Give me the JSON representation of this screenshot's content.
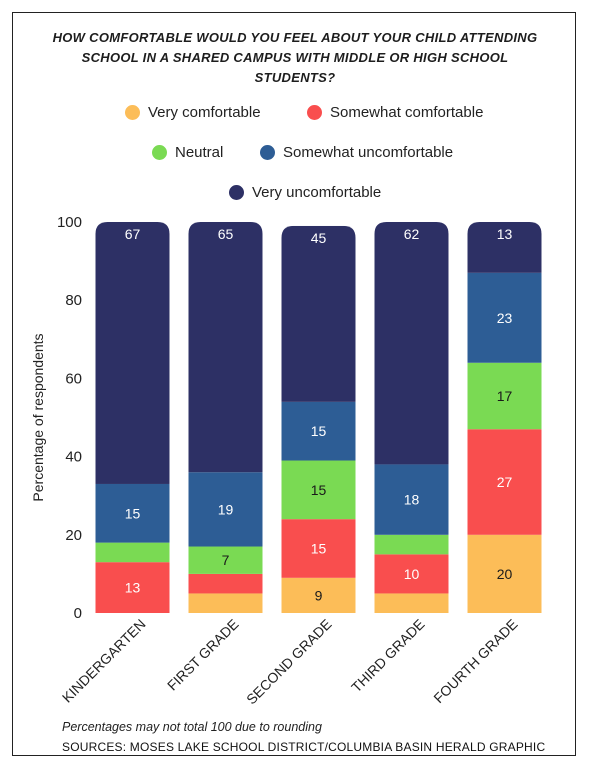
{
  "title": "HOW COMFORTABLE WOULD YOU FEEL ABOUT YOUR CHILD ATTENDING\nSCHOOL IN A SHARED CAMPUS WITH MIDDLE OR HIGH SCHOOL\nSTUDENTS?",
  "footnote": "Percentages may not total 100 due to rounding",
  "sources": "SOURCES: MOSES LAKE SCHOOL DISTRICT/COLUMBIA BASIN HERALD GRAPHIC",
  "chart_data": {
    "type": "bar",
    "stacked": true,
    "categories": [
      "KINDERGARTEN",
      "FIRST GRADE",
      "SECOND GRADE",
      "THIRD GRADE",
      "FOURTH GRADE"
    ],
    "series": [
      {
        "name": "Very comfortable",
        "color": "#fcbd58",
        "values": [
          0,
          5,
          9,
          5,
          20
        ],
        "labels": [
          "",
          "",
          "9",
          "",
          "20"
        ]
      },
      {
        "name": "Somewhat comfortable",
        "color": "#f94e4e",
        "values": [
          13,
          5,
          15,
          10,
          27
        ],
        "labels": [
          "13",
          "",
          "15",
          "10",
          "27"
        ]
      },
      {
        "name": "Neutral",
        "color": "#7ada53",
        "values": [
          5,
          7,
          15,
          5,
          17
        ],
        "labels": [
          "",
          "7",
          "15",
          "",
          "17"
        ]
      },
      {
        "name": "Somewhat uncomfortable",
        "color": "#2d5d95",
        "values": [
          15,
          19,
          15,
          18,
          23
        ],
        "labels": [
          "15",
          "19",
          "15",
          "18",
          "23"
        ]
      },
      {
        "name": "Very uncomfortable",
        "color": "#2d3065",
        "values": [
          67,
          65,
          45,
          62,
          13
        ],
        "labels": [
          "67",
          "65",
          "45",
          "62",
          "13"
        ]
      }
    ],
    "ylabel": "Percentage of respondents",
    "xlabel": "",
    "ylim": [
      0,
      100
    ],
    "yticks": [
      0,
      20,
      40,
      60,
      80,
      100
    ],
    "grid": false,
    "legend_placement": "top"
  }
}
